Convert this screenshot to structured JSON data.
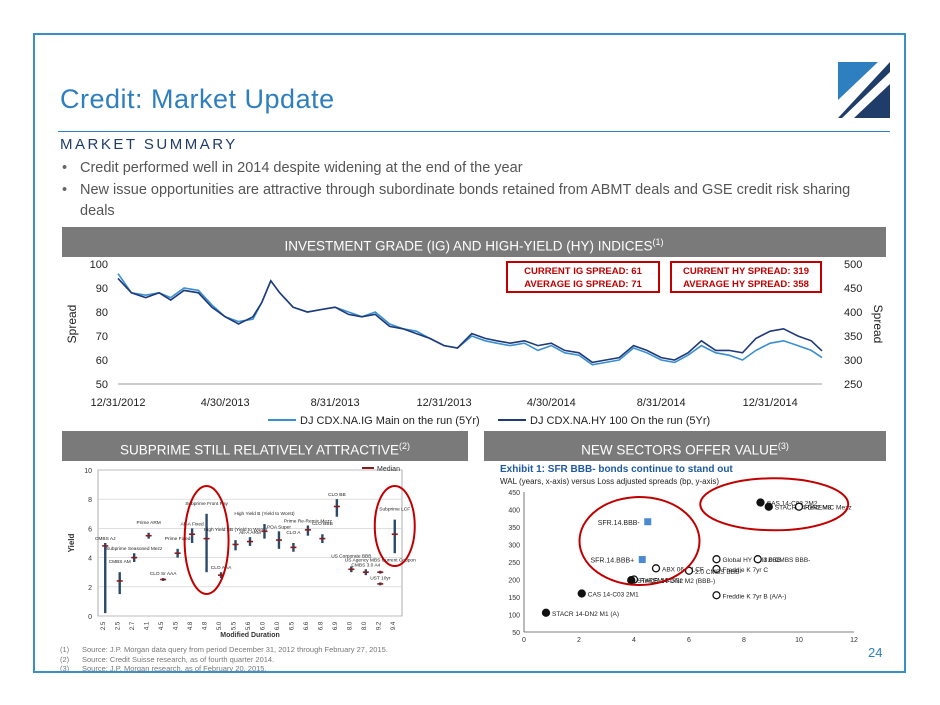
{
  "page": {
    "title": "Credit: Market Update",
    "section_header": "MARKET SUMMARY",
    "page_number": "24",
    "brand_color": "#2e7fc0",
    "banner_color": "#7a7a7a",
    "logo_icon": "corporate-logo-icon"
  },
  "bullets": [
    "Credit performed well in 2014 despite widening at the end of the year",
    "New issue opportunities are attractive through  subordinate bonds retained from ABMT deals and GSE credit risk sharing deals"
  ],
  "banners": {
    "top_text": "INVESTMENT GRADE (IG) AND HIGH-YIELD (HY) INDICES",
    "top_sup": "(1)",
    "left_text": "SUBPRIME STILL RELATIVELY ATTRACTIVE",
    "left_sup": "(2)",
    "right_text": "NEW SECTORS OFFER VALUE",
    "right_sup": "(3)"
  },
  "chart_data": [
    {
      "type": "line",
      "title": "",
      "xlabel": "",
      "ylabel": "Spread",
      "y2label": "Spread",
      "ylim": [
        50,
        100
      ],
      "y2lim": [
        250,
        500
      ],
      "yticks": [
        "50",
        "60",
        "70",
        "80",
        "90",
        "100"
      ],
      "y2ticks": [
        "250",
        "300",
        "350",
        "400",
        "450",
        "500"
      ],
      "xticks": [
        "12/31/2012",
        "4/30/2013",
        "8/31/2013",
        "12/31/2013",
        "4/30/2014",
        "8/31/2014",
        "12/31/2014"
      ],
      "callouts": {
        "ig_current": "CURRENT IG SPREAD: 61",
        "ig_average": "AVERAGE IG SPREAD:  71",
        "hy_current": "CURRENT HY SPREAD:  319",
        "hy_average": "AVERAGE HY SPREAD: 358",
        "border_color": "#c00000",
        "text_color": "#c00000"
      },
      "legend_position": "bottom",
      "series": [
        {
          "name": "DJ CDX.NA.IG Main on the run (5Yr)",
          "axis": "left",
          "color": "#3a8fd0",
          "x": [
            "2012-12-31",
            "2013-01-15",
            "2013-01-31",
            "2013-02-15",
            "2013-02-28",
            "2013-03-15",
            "2013-03-31",
            "2013-04-15",
            "2013-04-30",
            "2013-05-15",
            "2013-05-31",
            "2013-06-10",
            "2013-06-20",
            "2013-06-30",
            "2013-07-15",
            "2013-07-31",
            "2013-08-15",
            "2013-08-31",
            "2013-09-15",
            "2013-09-30",
            "2013-10-15",
            "2013-10-31",
            "2013-11-15",
            "2013-11-30",
            "2013-12-15",
            "2013-12-31",
            "2014-01-15",
            "2014-01-31",
            "2014-02-15",
            "2014-02-28",
            "2014-03-15",
            "2014-03-31",
            "2014-04-15",
            "2014-04-30",
            "2014-05-15",
            "2014-05-31",
            "2014-06-15",
            "2014-06-30",
            "2014-07-15",
            "2014-07-31",
            "2014-08-15",
            "2014-08-31",
            "2014-09-15",
            "2014-09-30",
            "2014-10-15",
            "2014-10-31",
            "2014-11-15",
            "2014-11-30",
            "2014-12-15",
            "2014-12-31",
            "2015-01-15",
            "2015-01-31",
            "2015-02-15",
            "2015-02-27"
          ],
          "values": [
            96,
            88,
            87,
            88,
            86,
            90,
            89,
            83,
            78,
            76,
            77,
            84,
            93,
            88,
            82,
            80,
            81,
            82,
            80,
            78,
            80,
            75,
            73,
            72,
            69,
            66,
            65,
            70,
            68,
            67,
            66,
            67,
            64,
            66,
            63,
            62,
            58,
            59,
            60,
            65,
            63,
            60,
            59,
            62,
            66,
            63,
            62,
            60,
            64,
            67,
            68,
            66,
            64,
            61
          ]
        },
        {
          "name": "DJ CDX.NA.HY 100 On the run (5Yr)",
          "axis": "right",
          "color": "#1f3a78",
          "x": [
            "2012-12-31",
            "2013-01-15",
            "2013-01-31",
            "2013-02-15",
            "2013-02-28",
            "2013-03-15",
            "2013-03-31",
            "2013-04-15",
            "2013-04-30",
            "2013-05-15",
            "2013-05-31",
            "2013-06-10",
            "2013-06-20",
            "2013-06-30",
            "2013-07-15",
            "2013-07-31",
            "2013-08-15",
            "2013-08-31",
            "2013-09-15",
            "2013-09-30",
            "2013-10-15",
            "2013-10-31",
            "2013-11-15",
            "2013-11-30",
            "2013-12-15",
            "2013-12-31",
            "2014-01-15",
            "2014-01-31",
            "2014-02-15",
            "2014-02-28",
            "2014-03-15",
            "2014-03-31",
            "2014-04-15",
            "2014-04-30",
            "2014-05-15",
            "2014-05-31",
            "2014-06-15",
            "2014-06-30",
            "2014-07-15",
            "2014-07-31",
            "2014-08-15",
            "2014-08-31",
            "2014-09-15",
            "2014-09-30",
            "2014-10-15",
            "2014-10-31",
            "2014-11-15",
            "2014-11-30",
            "2014-12-15",
            "2014-12-31",
            "2015-01-15",
            "2015-01-31",
            "2015-02-15",
            "2015-02-27"
          ],
          "values": [
            470,
            440,
            430,
            440,
            425,
            445,
            440,
            410,
            390,
            375,
            390,
            420,
            465,
            440,
            410,
            400,
            405,
            410,
            395,
            390,
            395,
            370,
            365,
            355,
            345,
            330,
            325,
            355,
            345,
            340,
            335,
            340,
            330,
            335,
            320,
            315,
            295,
            300,
            305,
            330,
            320,
            305,
            300,
            315,
            340,
            320,
            320,
            315,
            345,
            360,
            365,
            350,
            340,
            319
          ]
        }
      ]
    },
    {
      "type": "scatter",
      "title": "",
      "xlabel": "Modified Duration",
      "ylabel": "Yield",
      "ylim": [
        0,
        10
      ],
      "yticks": [
        "0",
        "2",
        "4",
        "6",
        "8",
        "10"
      ],
      "xticks": [
        "2.5",
        "2.5",
        "2.7",
        "4.1",
        "4.5",
        "4.5",
        "4.8",
        "4.8",
        "5.0",
        "5.5",
        "5.6",
        "6.0",
        "6.0",
        "6.5",
        "6.6",
        "6.8",
        "6.9",
        "8.0",
        "8.0",
        "9.2",
        "9.4"
      ],
      "legend": "Median",
      "points": [
        {
          "label": "CMBS AJ",
          "x": "2.5",
          "low": 0.2,
          "high": 5.0,
          "median": 4.8
        },
        {
          "label": "CMBS AM",
          "x": "2.5",
          "low": 1.5,
          "high": 3.0,
          "median": 2.4
        },
        {
          "label": "Subprime Seasoned Mezz",
          "x": "2.7",
          "low": 3.7,
          "high": 4.3,
          "median": 4.0
        },
        {
          "label": "Prime ARM",
          "x": "4.1",
          "low": 5.3,
          "high": 5.7,
          "median": 5.5
        },
        {
          "label": "CLO Sr AAA",
          "x": "4.5",
          "low": 2.4,
          "high": 2.6,
          "median": 2.5
        },
        {
          "label": "Prime Fixed",
          "x": "4.5",
          "low": 4.0,
          "high": 4.6,
          "median": 4.3
        },
        {
          "label": "Alt-A Fixed",
          "x": "4.8",
          "low": 5.0,
          "high": 6.0,
          "median": 5.6
        },
        {
          "label": "Subprime Front Pay",
          "x": "4.8",
          "low": 3.0,
          "high": 7.0,
          "median": 5.3
        },
        {
          "label": "CLO AAA",
          "x": "5.0",
          "low": 2.6,
          "high": 3.0,
          "median": 2.8
        },
        {
          "label": "High Yield BB (Yield to Worst)",
          "x": "5.5",
          "low": 4.5,
          "high": 5.2,
          "median": 4.9
        },
        {
          "label": "Alt-A ARM",
          "x": "5.6",
          "low": 4.8,
          "high": 5.4,
          "median": 5.1
        },
        {
          "label": "High Yield B (Yield to Worst)",
          "x": "6.0",
          "low": 5.3,
          "high": 6.3,
          "median": 5.8
        },
        {
          "label": "POA Super",
          "x": "6.0",
          "low": 4.6,
          "high": 5.8,
          "median": 5.2
        },
        {
          "label": "CLO A",
          "x": "6.5",
          "low": 4.4,
          "high": 5.0,
          "median": 4.7
        },
        {
          "label": "Prime Re-Remic Mezz",
          "x": "6.6",
          "low": 5.5,
          "high": 6.2,
          "median": 5.9
        },
        {
          "label": "CLO BBB",
          "x": "6.8",
          "low": 5.0,
          "high": 5.6,
          "median": 5.3
        },
        {
          "label": "CLO BB",
          "x": "6.9",
          "low": 6.8,
          "high": 8.0,
          "median": 7.5
        },
        {
          "label": "US Corporate BBB",
          "x": "8.0",
          "low": 3.0,
          "high": 3.4,
          "median": 3.2
        },
        {
          "label": "CMBS 3.0 A4",
          "x": "8.0",
          "low": 2.8,
          "high": 3.2,
          "median": 3.0
        },
        {
          "label": "US Agency MBS Current Coupon",
          "x": "9.2",
          "low": 2.9,
          "high": 3.1,
          "median": 3.0
        },
        {
          "label": "UST 10yr",
          "x": "9.2",
          "low": 2.1,
          "high": 2.3,
          "median": 2.2
        },
        {
          "label": "Subprime LCF",
          "x": "9.4",
          "low": 4.3,
          "high": 6.6,
          "median": 5.6
        }
      ]
    },
    {
      "type": "scatter",
      "title": "Exhibit 1:  SFR BBB- bonds continue to stand out",
      "subtitle": "WAL (years, x-axis) versus Loss adjusted spreads (bp, y-axis)",
      "xlabel": "",
      "ylabel": "",
      "xlim": [
        0,
        12
      ],
      "ylim": [
        50,
        450
      ],
      "xticks": [
        "0",
        "2",
        "4",
        "6",
        "8",
        "10",
        "12"
      ],
      "yticks": [
        "50",
        "100",
        "150",
        "200",
        "250",
        "300",
        "350",
        "400",
        "450"
      ],
      "points": [
        {
          "label": "SFR.14.BBB-",
          "x": 4.5,
          "y": 365,
          "marker": "square"
        },
        {
          "label": "SFR.14.BBB+",
          "x": 4.3,
          "y": 257,
          "marker": "square"
        },
        {
          "label": "CAS 14-C03 2M2",
          "x": 8.6,
          "y": 420,
          "marker": "circle"
        },
        {
          "label": "STACR 14-DN2 M3",
          "x": 8.9,
          "y": 408,
          "marker": "circle"
        },
        {
          "label": "ReREMIC Mezz",
          "x": 10.0,
          "y": 408,
          "marker": "open-circle"
        },
        {
          "label": "Global HY Split BBB",
          "x": 7.0,
          "y": 258,
          "marker": "open-circle"
        },
        {
          "label": "3.0 CMBS BBB-",
          "x": 8.5,
          "y": 258,
          "marker": "open-circle"
        },
        {
          "label": "Freddie K 7yr C",
          "x": 7.0,
          "y": 230,
          "marker": "open-circle"
        },
        {
          "label": "ABX 06-1 LCF",
          "x": 4.8,
          "y": 232,
          "marker": "open-circle"
        },
        {
          "label": "2.0 CMBS BBB-",
          "x": 6.0,
          "y": 225,
          "marker": "open-circle"
        },
        {
          "label": "ReREMIC SSr",
          "x": 4.0,
          "y": 200,
          "marker": "open-circle"
        },
        {
          "label": "STACR 14-DN2 M2 (BBB-)",
          "x": 3.9,
          "y": 198,
          "marker": "circle"
        },
        {
          "label": "CAS 14-C03 2M1",
          "x": 2.1,
          "y": 160,
          "marker": "circle"
        },
        {
          "label": "Freddie K 7yr B (A/A-)",
          "x": 7.0,
          "y": 155,
          "marker": "open-circle"
        },
        {
          "label": "STACR 14-DN2 M1 (A)",
          "x": 0.8,
          "y": 105,
          "marker": "circle"
        }
      ]
    }
  ],
  "footnotes": [
    {
      "num": "(1)",
      "text": "Source: J.P. Morgan data query from period December 31, 2012 through February 27, 2015."
    },
    {
      "num": "(2)",
      "text": "Source: Credit Suisse research, as of fourth quarter 2014."
    },
    {
      "num": "(3)",
      "text": "Source: J.P. Morgan research, as of February 20, 2015."
    }
  ]
}
